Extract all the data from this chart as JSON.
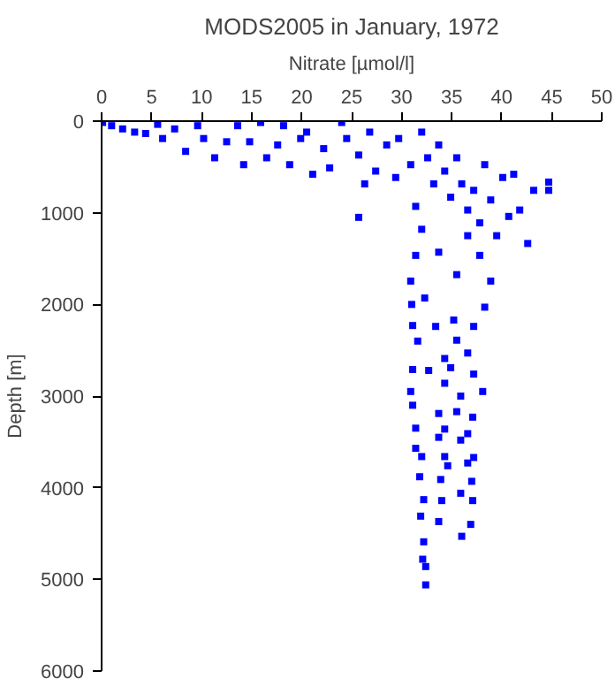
{
  "chart_data": {
    "type": "scatter",
    "title": "MODS2005 in January, 1972",
    "xlabel": "Nitrate [µmol/l]",
    "ylabel": "Depth [m]",
    "xlim": [
      0,
      50
    ],
    "xticks": [
      0,
      5,
      10,
      15,
      20,
      25,
      30,
      35,
      40,
      45,
      50
    ],
    "ylim": [
      6000,
      0
    ],
    "yticks": [
      0,
      1000,
      2000,
      3000,
      4000,
      5000,
      6000
    ],
    "grid": false,
    "marker": "square",
    "series": [
      {
        "color": "#0000ff",
        "x": [
          0.1,
          1,
          2.1,
          3.3,
          4.4,
          5.6,
          6.1,
          7.3,
          8.4,
          9.6,
          10.2,
          11.3,
          12.5,
          13.6,
          14.2,
          14.8,
          15.9,
          16.5,
          17.6,
          18.2,
          18.8,
          19.9,
          20.5,
          21.1,
          22.2,
          22.8,
          24,
          24.5,
          25.7,
          25.7,
          26.3,
          26.8,
          27.4,
          28.5,
          29.4,
          29.7,
          30.9,
          31.4,
          32,
          32.6,
          33.2,
          33.7,
          34.3,
          34.9,
          35.5,
          36,
          36.6,
          37.2,
          37.8,
          38.3,
          38.9,
          39.5,
          40.1,
          40.7,
          41.2,
          41.8,
          42.6,
          43.2,
          44.7,
          44.7,
          37.8,
          38.9,
          31.4,
          30.9,
          35.5,
          36.6,
          32,
          33.7,
          38.3,
          31,
          32.3,
          31.1,
          33.4,
          35.2,
          37.2,
          31.6,
          35.5,
          34.3,
          36.6,
          31.1,
          32.7,
          34.9,
          37.2,
          30.9,
          34.3,
          35.9,
          38.1,
          31.1,
          33.7,
          35.5,
          37.1,
          31.4,
          34.3,
          36.6,
          31.4,
          33.7,
          35.9,
          32,
          34.3,
          37.2,
          31.8,
          34.6,
          36.6,
          33.9,
          37,
          32.2,
          34,
          35.9,
          37.1,
          31.9,
          33.7,
          36.9,
          32.2,
          36,
          32.1,
          32.4,
          32.4
        ],
        "values": [
          15,
          50,
          85,
          120,
          135,
          35,
          190,
          85,
          330,
          50,
          190,
          400,
          225,
          50,
          475,
          225,
          15,
          400,
          260,
          50,
          475,
          190,
          120,
          580,
          300,
          510,
          15,
          190,
          370,
          1050,
          685,
          120,
          545,
          260,
          615,
          190,
          475,
          930,
          120,
          400,
          685,
          260,
          545,
          830,
          400,
          685,
          970,
          755,
          1110,
          475,
          860,
          1250,
          615,
          1040,
          580,
          970,
          1335,
          755,
          665,
          755,
          1465,
          1745,
          1465,
          1745,
          1675,
          1250,
          1180,
          1430,
          2030,
          2000,
          1930,
          2230,
          2240,
          2170,
          2240,
          2400,
          2390,
          2590,
          2530,
          2710,
          2720,
          2690,
          2760,
          2950,
          2860,
          3000,
          2950,
          3100,
          3190,
          3170,
          3230,
          3350,
          3360,
          3410,
          3570,
          3450,
          3480,
          3660,
          3660,
          3670,
          3880,
          3760,
          3730,
          3910,
          3930,
          4130,
          4140,
          4060,
          4140,
          4310,
          4370,
          4400,
          4590,
          4530,
          4780,
          4860,
          5060
        ]
      }
    ]
  }
}
